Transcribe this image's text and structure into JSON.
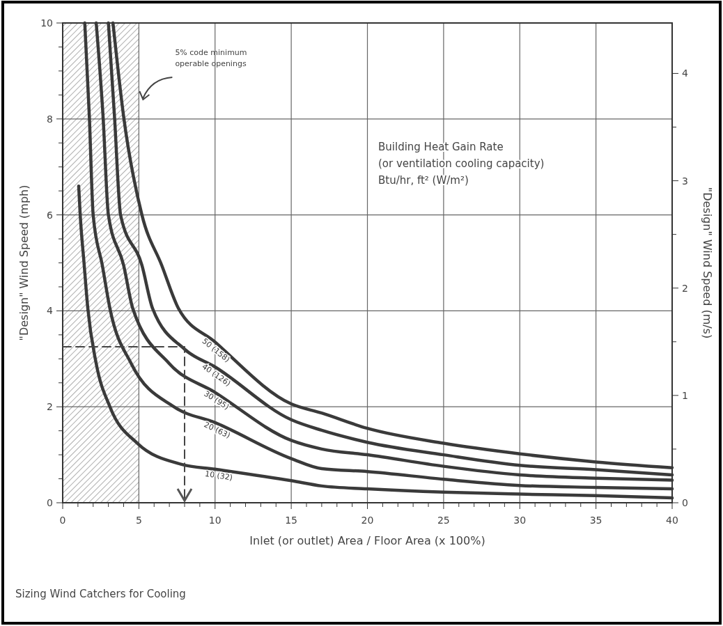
{
  "chart_data": {
    "type": "line",
    "title": "Sizing Wind Catchers for Cooling",
    "xlabel": "Inlet (or outlet) Area / Floor Area (x 100%)",
    "ylabel": "\"Design\" Wind Speed (mph)",
    "y2label": "\"Design\" Wind Speed (m/s)",
    "legend_title": "Building Heat Gain Rate\n(or ventilation cooling capacity)\nBtu/hr, ft² (W/m²)",
    "xlim": [
      0,
      40
    ],
    "xticks": [
      0,
      {
        "value": 1,
        "label": null
      },
      {
        "value": 2,
        "label": null
      },
      {
        "value": 3,
        "label": null
      },
      {
        "value": 4,
        "label": null
      },
      5,
      {
        "value": 6,
        "label": null
      },
      {
        "value": 7,
        "label": null
      },
      {
        "value": 8,
        "label": null
      },
      {
        "value": 9,
        "label": null
      },
      10,
      {
        "value": 11,
        "label": null
      },
      {
        "value": 12,
        "label": null
      },
      {
        "value": 13,
        "label": null
      },
      {
        "value": 14,
        "label": null
      },
      15,
      {
        "value": 16,
        "label": null
      },
      {
        "value": 17,
        "label": null
      },
      {
        "value": 18,
        "label": null
      },
      {
        "value": 19,
        "label": null
      },
      20,
      {
        "value": 21,
        "label": null
      },
      {
        "value": 22,
        "label": null
      },
      {
        "value": 23,
        "label": null
      },
      {
        "value": 24,
        "label": null
      },
      25,
      {
        "value": 26,
        "label": null
      },
      {
        "value": 27,
        "label": null
      },
      {
        "value": 28,
        "label": null
      },
      {
        "value": 29,
        "label": null
      },
      30,
      {
        "value": 31,
        "label": null
      },
      {
        "value": 32,
        "label": null
      },
      {
        "value": 33,
        "label": null
      },
      {
        "value": 34,
        "label": null
      },
      35,
      {
        "value": 36,
        "label": null
      },
      {
        "value": 37,
        "label": null
      },
      {
        "value": 38,
        "label": null
      },
      {
        "value": 39,
        "label": null
      },
      40
    ],
    "ylim": [
      0,
      10
    ],
    "yticks": [
      0,
      {
        "value": 0.5,
        "label": null
      },
      {
        "value": 1,
        "label": null
      },
      {
        "value": 1.5,
        "label": null
      },
      2,
      {
        "value": 2.5,
        "label": null
      },
      {
        "value": 3,
        "label": null
      },
      {
        "value": 3.5,
        "label": null
      },
      4,
      {
        "value": 4.5,
        "label": null
      },
      {
        "value": 5,
        "label": null
      },
      {
        "value": 5.5,
        "label": null
      },
      6,
      {
        "value": 6.5,
        "label": null
      },
      {
        "value": 7,
        "label": null
      },
      {
        "value": 7.5,
        "label": null
      },
      8,
      {
        "value": 8.5,
        "label": null
      },
      {
        "value": 9,
        "label": null
      },
      {
        "value": 9.5,
        "label": null
      },
      10
    ],
    "y2lim": [
      0,
      4.47
    ],
    "y2ticks": [
      0,
      {
        "value": 0.5,
        "label": null
      },
      1,
      {
        "value": 1.5,
        "label": null
      },
      2,
      {
        "value": 2.5,
        "label": null
      },
      3,
      {
        "value": 3.5,
        "label": null
      },
      4
    ],
    "grid": true,
    "legend": false,
    "line_style": "solid",
    "bands": [
      {
        "axis": "x",
        "from": 0,
        "to": 5,
        "label": "5% code minimum\noperable openings",
        "color": "#555555"
      }
    ],
    "series": [
      {
        "name": "10 (32)",
        "color": "#3a3a3a",
        "x": [
          1.05,
          1.15,
          1.4,
          1.65,
          2.2,
          3.1,
          4.9,
          7.8,
          10,
          15,
          17,
          20,
          25,
          30,
          35,
          40
        ],
        "values": [
          6.6,
          6.0,
          5.0,
          4.05,
          2.9,
          2.0,
          1.24,
          0.8,
          0.7,
          0.46,
          0.35,
          0.29,
          0.22,
          0.18,
          0.15,
          0.1
        ]
      },
      {
        "name": "20 (63)",
        "color": "#3a3a3a",
        "x": [
          1.45,
          1.75,
          2.0,
          2.6,
          3.1,
          4.5,
          7.3,
          10,
          15,
          17,
          20,
          25,
          30,
          35,
          40
        ],
        "values": [
          10,
          8.05,
          6.0,
          4.95,
          4.05,
          2.9,
          2.0,
          1.67,
          0.92,
          0.71,
          0.65,
          0.49,
          0.36,
          0.32,
          0.29
        ]
      },
      {
        "name": "30 (95)",
        "color": "#3a3a3a",
        "x": [
          2.2,
          2.65,
          3.0,
          4.0,
          4.6,
          7.0,
          10,
          15,
          17,
          20,
          25,
          30,
          35,
          40
        ],
        "values": [
          10,
          8.05,
          6.0,
          4.95,
          4.05,
          2.9,
          2.3,
          1.3,
          1.12,
          1.0,
          0.76,
          0.58,
          0.51,
          0.47
        ]
      },
      {
        "name": "40 (126)",
        "color": "#3a3a3a",
        "x": [
          3.0,
          3.4,
          3.8,
          5.2,
          5.9,
          8.0,
          10,
          15,
          17,
          20,
          25,
          30,
          35,
          40
        ],
        "values": [
          10,
          8.05,
          6.0,
          4.95,
          4.05,
          3.2,
          2.83,
          1.73,
          1.51,
          1.26,
          1.0,
          0.78,
          0.69,
          0.58
        ]
      },
      {
        "name": "50 (158)",
        "color": "#3a3a3a",
        "x": [
          3.3,
          4.0,
          5.2,
          6.5,
          7.6,
          10,
          15,
          17,
          20,
          25,
          30,
          35,
          40
        ],
        "values": [
          10,
          8.05,
          6.0,
          4.95,
          4.05,
          3.35,
          2.06,
          1.87,
          1.55,
          1.24,
          1.02,
          0.85,
          0.73
        ]
      },
      {
        "color": "#444444",
        "line_style": "dashed",
        "x": [
          0,
          8,
          8
        ],
        "values": [
          3.25,
          3.25,
          0
        ]
      }
    ]
  }
}
